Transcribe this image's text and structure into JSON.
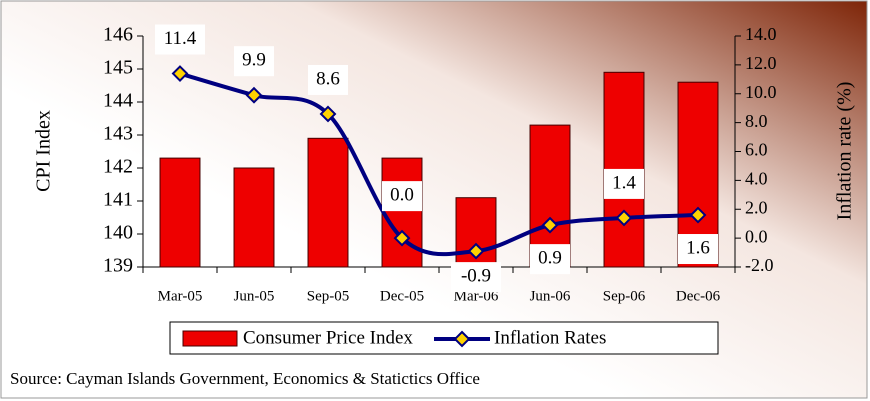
{
  "chart_data": {
    "type": "combo",
    "categories": [
      "Mar-05",
      "Jun-05",
      "Sep-05",
      "Dec-05",
      "Mar-06",
      "Jun-06",
      "Sep-06",
      "Dec-06"
    ],
    "series": [
      {
        "name": "Consumer Price Index",
        "type": "bar",
        "color": "#ee0000",
        "values": [
          142.3,
          142.0,
          142.9,
          142.3,
          141.1,
          143.3,
          144.9,
          144.6
        ]
      },
      {
        "name": "Inflation Rates",
        "type": "line",
        "axis": "y2",
        "color": "#000080",
        "marker_color": "#ffd200",
        "values": [
          11.4,
          9.9,
          8.6,
          0.0,
          -0.9,
          0.9,
          1.4,
          1.6
        ],
        "value_labels": [
          "11.4",
          "9.9",
          "8.6",
          "0.0",
          "-0.9",
          "0.9",
          "1.4",
          "1.6"
        ]
      }
    ],
    "ylabel": "CPI Index",
    "y2label": "Inflation rate (%)",
    "ylim": [
      139,
      146
    ],
    "yticks": [
      139,
      140,
      141,
      142,
      143,
      144,
      145,
      146
    ],
    "y2lim": [
      -2,
      14
    ],
    "y2ticks": [
      {
        "value": -2,
        "label": "-2.0"
      },
      {
        "value": 0,
        "label": "0.0"
      },
      {
        "value": 2,
        "label": "2.0"
      },
      {
        "value": 4,
        "label": "4.0"
      },
      {
        "value": 6,
        "label": "6.0"
      },
      {
        "value": 8,
        "label": "8.0"
      },
      {
        "value": 10,
        "label": "10.0"
      },
      {
        "value": 12,
        "label": "12.0"
      },
      {
        "value": 14,
        "label": "14.0"
      }
    ],
    "legend": "bottom",
    "source": "Source: Cayman Islands Government, Economics & Statictics Office"
  }
}
